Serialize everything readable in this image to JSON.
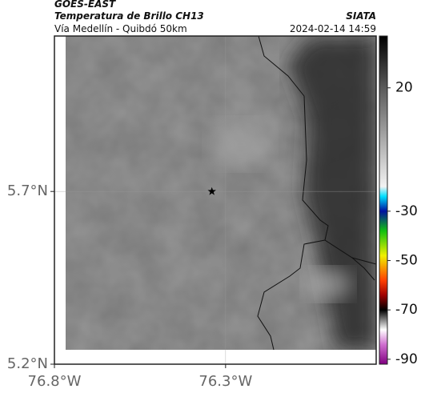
{
  "header": {
    "satellite": "GOES-EAST",
    "product": "Temperatura de Brillo CH13",
    "region": "Vía Medellín - Quibdó 50km",
    "source": "SIATA",
    "datetime": "2024-02-14 14:59"
  },
  "map": {
    "xlim": [
      -76.8,
      -75.86
    ],
    "ylim": [
      5.2,
      6.15
    ],
    "xticks": [
      {
        "value": -76.8,
        "label": "76.8°W"
      },
      {
        "value": -76.3,
        "label": "76.3°W"
      }
    ],
    "yticks": [
      {
        "value": 5.2,
        "label": "5.2°N"
      },
      {
        "value": 5.7,
        "label": "5.7°N"
      }
    ],
    "grid": true,
    "marker": {
      "lon": -76.34,
      "lat": 5.7,
      "color": "#000000"
    }
  },
  "colorbar": {
    "clim": [
      -92,
      41
    ],
    "ticks": [
      20,
      -30,
      -50,
      -70,
      -90
    ],
    "colormap": [
      {
        "value": 41,
        "color": "#000000"
      },
      {
        "value": 20,
        "color": "#5a5a5a"
      },
      {
        "value": -20,
        "color": "#f2f2f2"
      },
      {
        "value": -24,
        "color": "#00e0ff"
      },
      {
        "value": -30,
        "color": "#0010a0"
      },
      {
        "value": -38,
        "color": "#10c010"
      },
      {
        "value": -48,
        "color": "#f0f000"
      },
      {
        "value": -58,
        "color": "#ff4000"
      },
      {
        "value": -64,
        "color": "#a00000"
      },
      {
        "value": -70,
        "color": "#000000"
      },
      {
        "value": -78,
        "color": "#ffffff"
      },
      {
        "value": -84,
        "color": "#d070d0"
      },
      {
        "value": -92,
        "color": "#800080"
      }
    ]
  }
}
